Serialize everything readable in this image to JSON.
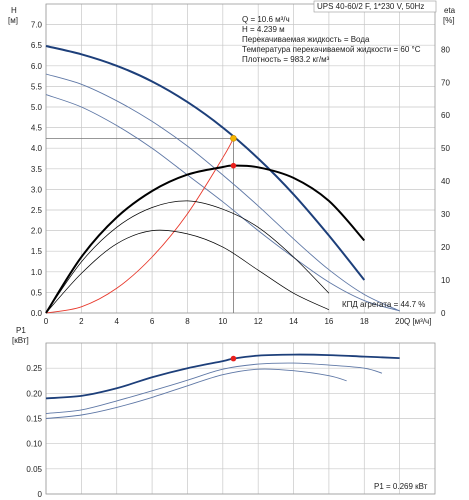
{
  "header": {
    "title": "UPS 40-60/2 F, 1*230 V, 50Hz"
  },
  "info": {
    "lines": [
      "Q = 10.6 м³/ч",
      "H = 4.239 м",
      "Перекачиваемая жидкость = Вода",
      "Температура перекачиваемой жидкости = 60 °C",
      "Плотность = 983.2 кг/м³"
    ]
  },
  "labels": {
    "h_axis_symbol": "H",
    "h_axis_unit": "[м]",
    "eta_axis_symbol": "eta",
    "eta_axis_unit": "[%]",
    "q_axis_label": "Q [м³/ч]",
    "p_axis_symbol": "P1",
    "p_axis_unit": "[кВт]",
    "efficiency_note": "КПД агрегата = 44.7 %",
    "power_note": "P1 = 0.269 кВт"
  },
  "colors": {
    "main_curve": "#1d3f7a",
    "secondary_curve": "#5f78a6",
    "system_curve": "#e8382b",
    "eff_curve": "#000000",
    "operating_point": "#e8201c",
    "head_point": "#f4b400",
    "grid": "#c8c8c8"
  },
  "chart_data": [
    {
      "type": "line",
      "title": "UPS 40-60/2 F, 1*230 V, 50Hz",
      "xlabel": "Q [м³/ч]",
      "ylabel": "H [м]",
      "y2label": "eta [%]",
      "xlim": [
        0,
        22
      ],
      "ylim": [
        0,
        7.5
      ],
      "y2lim": [
        0,
        93.75
      ],
      "xticks": [
        "0",
        "2",
        "4",
        "6",
        "8",
        "10",
        "12",
        "14",
        "16",
        "18",
        "20"
      ],
      "yticks": [
        "0.0",
        "0.5",
        "1.0",
        "1.5",
        "2.0",
        "2.5",
        "3.0",
        "3.5",
        "4.0",
        "4.5",
        "5.0",
        "5.5",
        "6.0",
        "6.5",
        "7.0"
      ],
      "y2ticks": [
        "0",
        "10",
        "20",
        "30",
        "40",
        "50",
        "60",
        "70",
        "80"
      ],
      "grid": true,
      "series": [
        {
          "axis": "H",
          "role": "head-speed-3",
          "x": [
            0,
            2,
            4,
            6,
            8,
            10,
            12,
            14,
            16,
            18
          ],
          "y": [
            6.48,
            6.28,
            6.0,
            5.62,
            5.12,
            4.5,
            3.75,
            2.88,
            1.88,
            0.8
          ]
        },
        {
          "axis": "H",
          "role": "head-speed-2",
          "x": [
            0,
            2,
            4,
            6,
            8,
            10,
            12,
            14,
            16,
            18,
            20
          ],
          "y": [
            5.8,
            5.55,
            5.15,
            4.65,
            4.05,
            3.35,
            2.6,
            1.8,
            1.05,
            0.45,
            0.05
          ]
        },
        {
          "axis": "H",
          "role": "head-speed-1",
          "x": [
            0,
            2,
            4,
            6,
            8,
            10,
            12,
            14,
            16,
            18,
            20
          ],
          "y": [
            5.3,
            5.0,
            4.55,
            4.0,
            3.35,
            2.7,
            2.0,
            1.35,
            0.75,
            0.3,
            0.05
          ]
        },
        {
          "axis": "H",
          "role": "system-curve",
          "x": [
            0,
            2,
            4,
            6,
            8,
            10,
            10.6
          ],
          "y": [
            0,
            0.15,
            0.6,
            1.36,
            2.41,
            3.77,
            4.239
          ]
        },
        {
          "axis": "eta",
          "role": "efficiency-speed-3",
          "x": [
            0,
            2,
            4,
            6,
            8,
            10,
            10.6,
            12,
            14,
            16,
            18
          ],
          "y": [
            0,
            17,
            29,
            37,
            42,
            44.3,
            44.7,
            44.2,
            41,
            34,
            22
          ]
        },
        {
          "axis": "eta",
          "role": "efficiency-speed-2",
          "x": [
            0,
            2,
            4,
            6,
            8,
            10,
            12,
            14,
            16
          ],
          "y": [
            0,
            15.5,
            26,
            32,
            34,
            31.5,
            26,
            17,
            6
          ]
        },
        {
          "axis": "eta",
          "role": "efficiency-speed-1",
          "x": [
            0,
            2,
            4,
            6,
            8,
            10,
            12,
            14,
            16
          ],
          "y": [
            0,
            12,
            21,
            25,
            24,
            20,
            13,
            6,
            1
          ]
        }
      ],
      "operating_point": {
        "q": 10.6,
        "h": 4.239,
        "eta": 44.7
      }
    },
    {
      "type": "line",
      "ylabel": "P1 [кВт]",
      "xlim": [
        0,
        22
      ],
      "ylim": [
        0,
        0.3
      ],
      "yticks": [
        "0",
        "0.05",
        "0.10",
        "0.15",
        "0.20",
        "0.25"
      ],
      "grid": true,
      "series": [
        {
          "role": "power-speed-3",
          "x": [
            0,
            2,
            4,
            6,
            8,
            10,
            10.6,
            12,
            14,
            16,
            18,
            20
          ],
          "y": [
            0.19,
            0.195,
            0.21,
            0.232,
            0.25,
            0.264,
            0.269,
            0.275,
            0.277,
            0.276,
            0.273,
            0.27
          ]
        },
        {
          "role": "power-speed-2",
          "x": [
            0,
            2,
            4,
            6,
            8,
            10,
            12,
            14,
            16,
            18,
            19
          ],
          "y": [
            0.16,
            0.167,
            0.185,
            0.205,
            0.226,
            0.248,
            0.258,
            0.26,
            0.256,
            0.25,
            0.24
          ]
        },
        {
          "role": "power-speed-1",
          "x": [
            0,
            2,
            4,
            6,
            8,
            10,
            12,
            14,
            16,
            17
          ],
          "y": [
            0.15,
            0.157,
            0.172,
            0.192,
            0.215,
            0.237,
            0.248,
            0.245,
            0.235,
            0.225
          ]
        }
      ],
      "operating_point": {
        "q": 10.6,
        "p1": 0.269
      }
    }
  ]
}
